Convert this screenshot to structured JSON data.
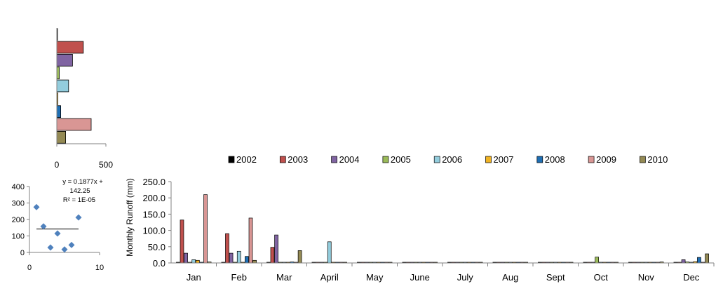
{
  "chart_data": [
    {
      "type": "bar",
      "orientation": "horizontal",
      "values": [
        2,
        270,
        160,
        25,
        120,
        10,
        40,
        350,
        90
      ],
      "colors": [
        "#000000",
        "#C0504D",
        "#8064A2",
        "#9BBB59",
        "#93CDDD",
        "#F0B323",
        "#1F6FB4",
        "#D99694",
        "#948A54"
      ],
      "xlim": [
        0,
        500
      ],
      "xticks": [
        "0",
        "500"
      ]
    },
    {
      "type": "scatter",
      "points": [
        [
          1,
          275
        ],
        [
          2,
          158
        ],
        [
          3,
          30
        ],
        [
          4,
          115
        ],
        [
          5,
          18
        ],
        [
          6,
          45
        ],
        [
          7,
          212
        ]
      ],
      "trendline_y": 142.25,
      "equation": "y = 0.1877x + 142.25",
      "r_squared": "R² = 1E-05",
      "xlim": [
        0,
        10
      ],
      "ylim": [
        0,
        400
      ],
      "xticks": [
        "0",
        "10"
      ],
      "yticks": [
        "0",
        "100",
        "200",
        "300",
        "400"
      ],
      "marker_color": "#4F81BD"
    },
    {
      "type": "bar",
      "ylabel": "Monthly  Runoff (mm)",
      "ylim": [
        0,
        250
      ],
      "yticks": [
        "0.0",
        "50.0",
        "100.0",
        "150.0",
        "200.0",
        "250.0"
      ],
      "legend_position": "top",
      "categories": [
        "Jan",
        "Feb",
        "Mar",
        "April",
        "May",
        "June",
        "July",
        "Aug",
        "Sept",
        "Oct",
        "Nov",
        "Dec"
      ],
      "series": [
        {
          "name": "2002",
          "color": "#000000",
          "values": [
            0,
            0,
            0,
            0,
            0,
            0,
            0,
            0,
            0,
            0,
            0,
            0
          ]
        },
        {
          "name": "2003",
          "color": "#C0504D",
          "values": [
            132,
            90,
            48,
            0,
            0,
            0,
            0,
            0,
            0,
            0,
            0,
            1
          ]
        },
        {
          "name": "2004",
          "color": "#8064A2",
          "values": [
            30,
            30,
            86,
            0,
            0,
            0,
            0,
            0,
            0,
            0,
            0,
            10
          ]
        },
        {
          "name": "2005",
          "color": "#9BBB59",
          "values": [
            0,
            0,
            2,
            0,
            0,
            0,
            0,
            0,
            0,
            18,
            0,
            3
          ]
        },
        {
          "name": "2006",
          "color": "#93CDDD",
          "values": [
            10,
            36,
            1,
            65,
            0,
            0,
            0,
            0,
            0,
            2,
            0,
            0
          ]
        },
        {
          "name": "2007",
          "color": "#F0B323",
          "values": [
            8,
            0,
            0,
            0,
            0,
            0,
            0,
            0,
            0,
            0,
            0,
            4
          ]
        },
        {
          "name": "2008",
          "color": "#1F6FB4",
          "values": [
            0,
            20,
            3,
            1,
            0,
            0,
            0,
            0,
            0,
            0,
            0,
            17
          ]
        },
        {
          "name": "2009",
          "color": "#D99694",
          "values": [
            210,
            138,
            0,
            0,
            0,
            0,
            0,
            0,
            0,
            0,
            0,
            0
          ]
        },
        {
          "name": "2010",
          "color": "#948A54",
          "values": [
            3,
            8,
            38,
            0,
            0,
            0,
            0,
            0,
            0,
            2,
            3,
            28
          ]
        }
      ]
    }
  ]
}
